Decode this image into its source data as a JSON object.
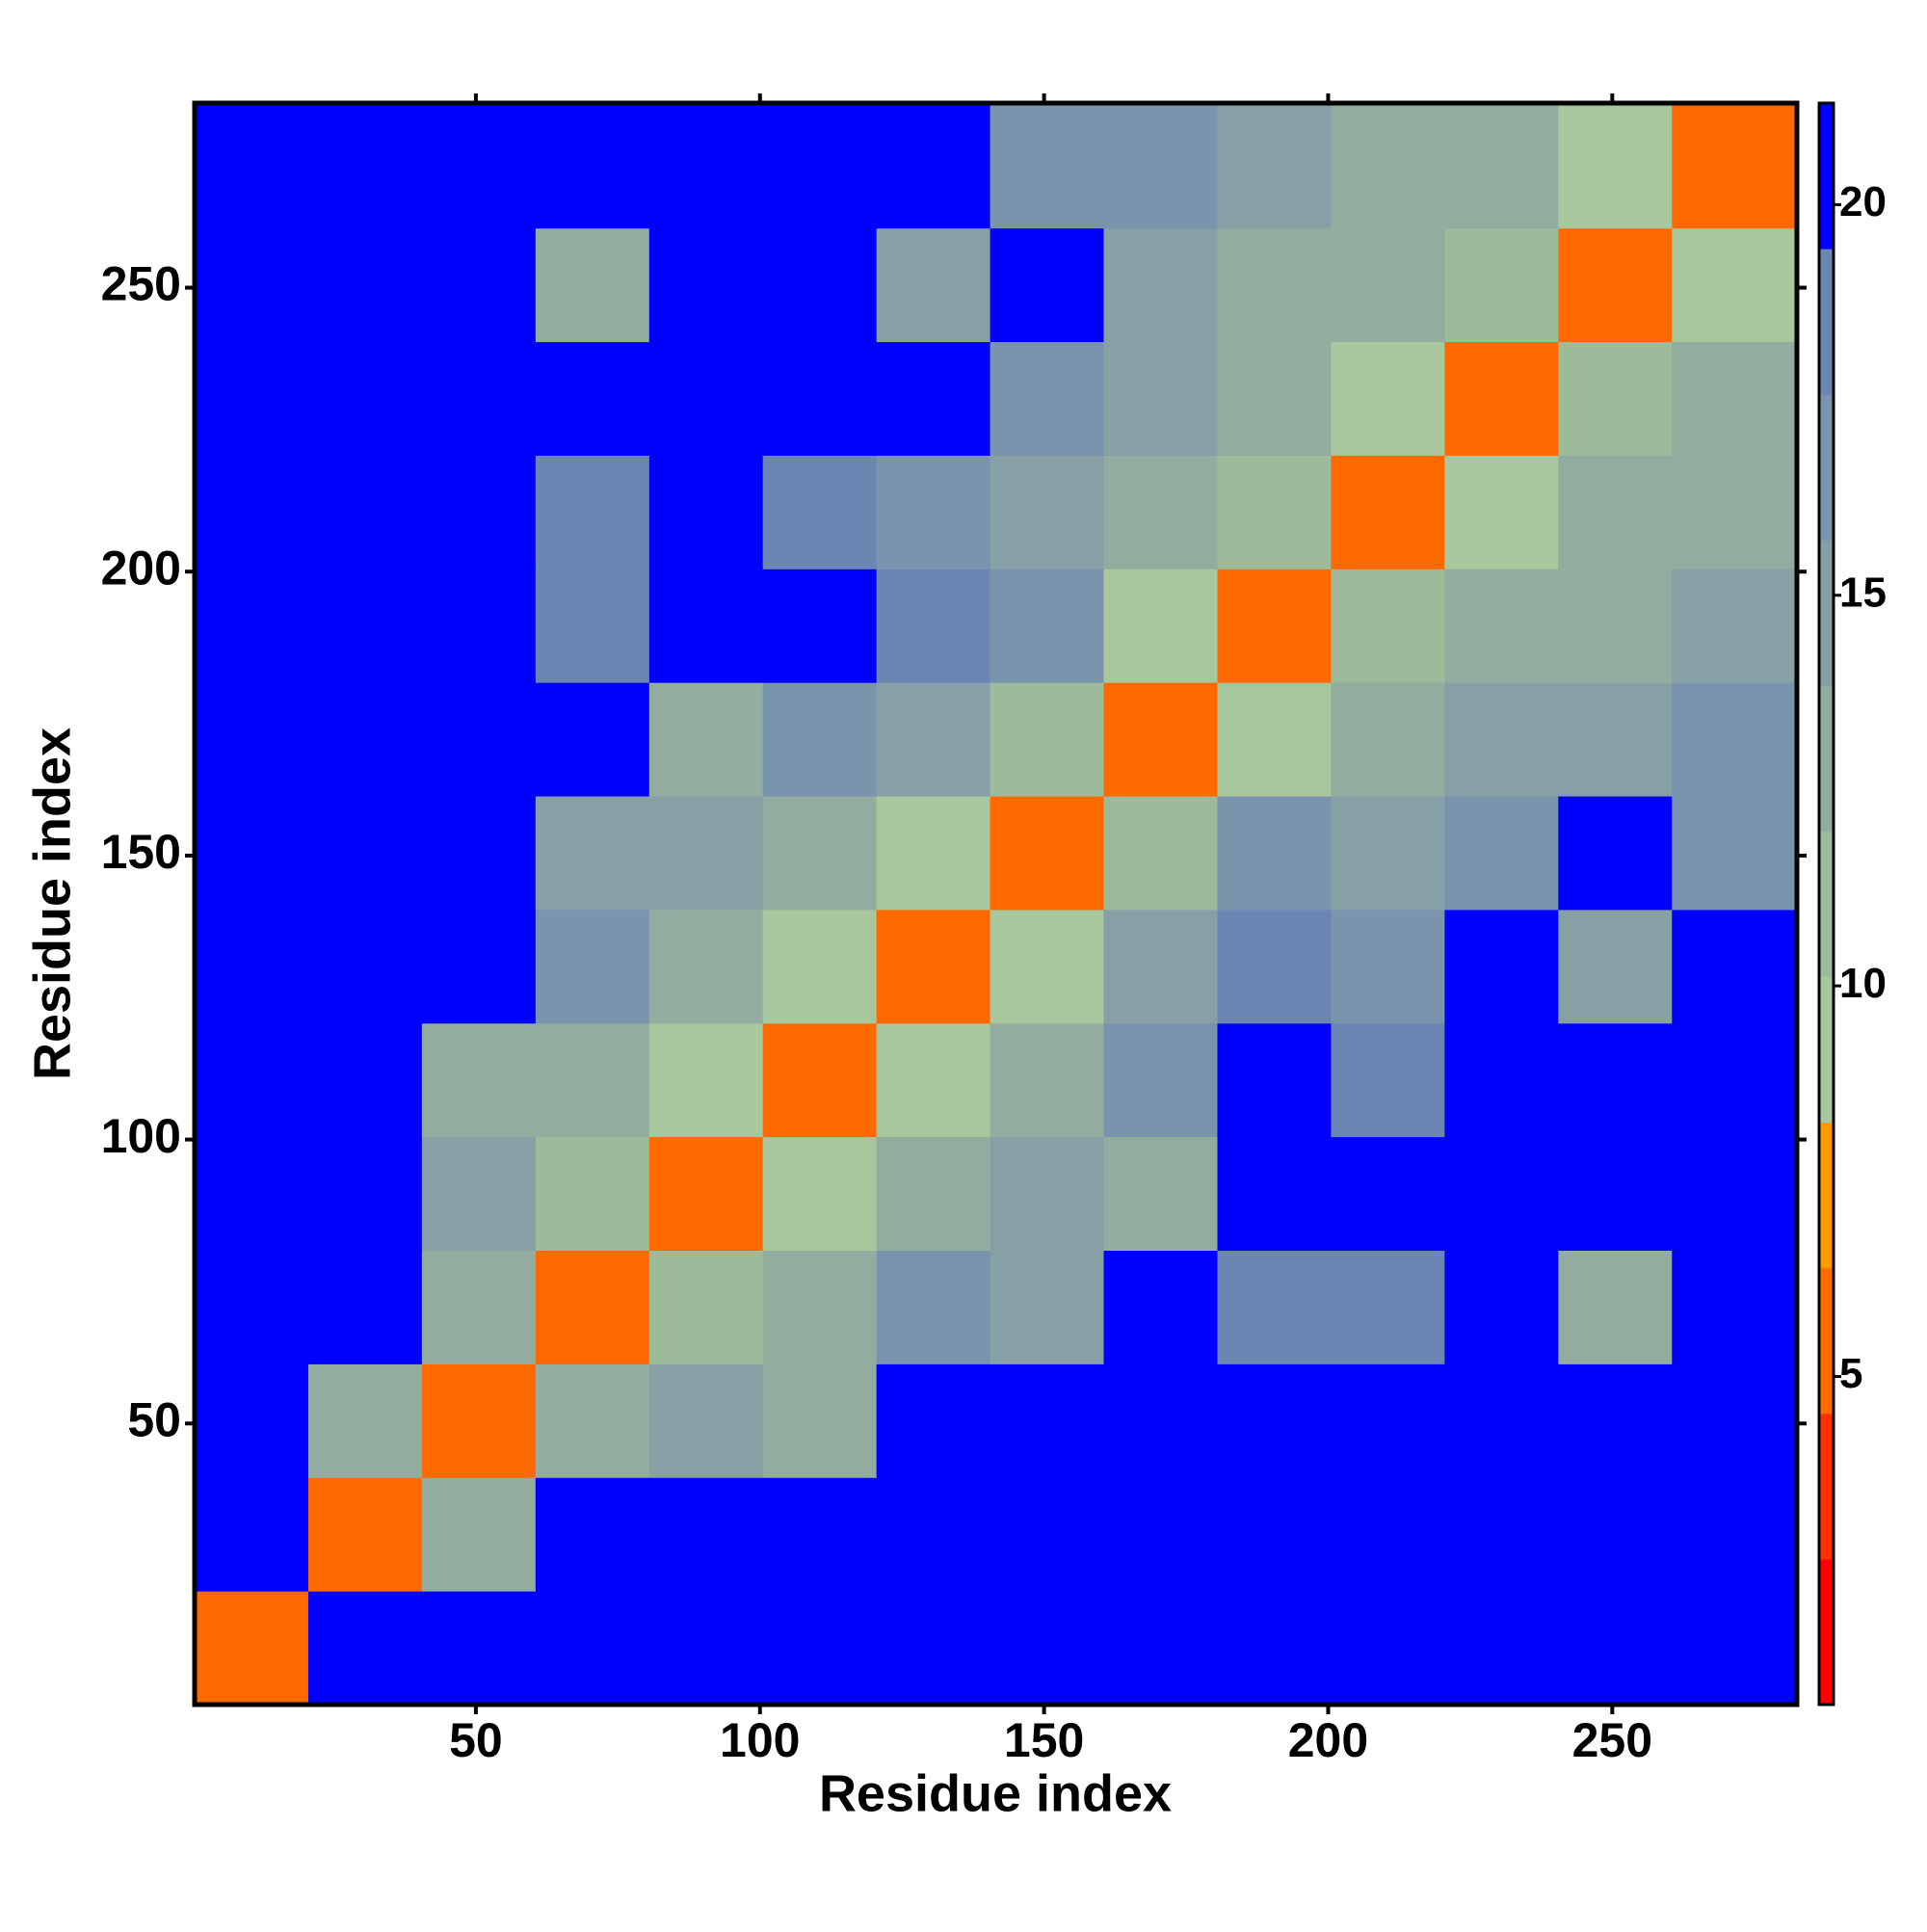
{
  "chart_data": {
    "type": "heatmap",
    "x_title": "Residue index",
    "y_title": "Residue index",
    "x_edges": [
      0.5,
      20.5,
      40.5,
      60.5,
      80.5,
      100.5,
      120.5,
      140.5,
      160.5,
      180.5,
      200.5,
      220.5,
      240.5,
      260.5,
      282.5
    ],
    "y_edges": [
      0.5,
      20.5,
      40.5,
      60.5,
      80.5,
      100.5,
      120.5,
      140.5,
      160.5,
      180.5,
      200.5,
      220.5,
      240.5,
      260.5,
      282.5
    ],
    "z": [
      [
        5,
        21.3,
        21.3,
        21.3,
        21.3,
        21.3,
        21.3,
        21.3,
        21.3,
        21.3,
        21.3,
        21.3,
        21.3,
        21.3
      ],
      [
        21.3,
        5,
        13,
        21.3,
        21.3,
        21.3,
        21.3,
        21.3,
        21.3,
        21.3,
        21.3,
        21.3,
        21.3,
        21.3
      ],
      [
        21.3,
        13,
        5,
        12,
        14,
        12,
        21.3,
        21.3,
        21.3,
        21.3,
        21.3,
        21.3,
        21.3,
        21.3
      ],
      [
        21.3,
        21.3,
        12,
        5,
        11,
        12,
        16,
        14,
        21.3,
        18,
        18,
        21.3,
        13,
        21.3
      ],
      [
        21.3,
        21.3,
        14,
        11,
        5,
        10,
        13,
        14,
        13,
        21.3,
        21.3,
        21.3,
        21.3,
        21.3
      ],
      [
        21.3,
        21.3,
        12,
        12,
        10,
        5,
        10,
        13,
        16,
        21.3,
        18,
        21.3,
        21.3,
        21.3
      ],
      [
        21.3,
        21.3,
        21.3,
        16,
        13,
        10,
        5,
        10,
        14,
        18,
        17,
        21.3,
        14,
        21.3
      ],
      [
        21.3,
        21.3,
        21.3,
        14,
        14,
        13,
        10,
        5,
        11,
        17,
        15,
        17,
        21.3,
        16
      ],
      [
        21.3,
        21.3,
        21.3,
        21.3,
        13,
        16,
        14,
        11,
        5,
        10,
        12,
        14,
        15,
        16
      ],
      [
        21.3,
        21.3,
        21.3,
        18,
        21.3,
        21.3,
        18,
        17,
        10,
        5,
        11,
        12,
        13,
        14
      ],
      [
        21.3,
        21.3,
        21.3,
        18,
        21.3,
        18,
        17,
        15,
        12,
        11,
        5,
        10,
        12,
        13
      ],
      [
        21.3,
        21.3,
        21.3,
        21.3,
        21.3,
        21.3,
        21.3,
        17,
        14,
        12,
        10,
        5,
        11,
        12
      ],
      [
        21.3,
        21.3,
        21.3,
        13,
        21.3,
        21.3,
        14,
        21.3,
        15,
        13,
        12,
        11,
        5,
        10
      ],
      [
        21.3,
        21.3,
        21.3,
        21.3,
        21.3,
        21.3,
        21.3,
        16,
        16,
        14,
        13,
        12,
        10,
        5
      ]
    ],
    "xlim": [
      0.5,
      282.5
    ],
    "ylim": [
      0.5,
      282.5
    ],
    "xticks": [
      50,
      100,
      150,
      200,
      250
    ],
    "yticks": [
      50,
      100,
      150,
      200,
      250
    ],
    "zlim": [
      0.8,
      21.3
    ],
    "zticks": [
      5,
      10,
      15,
      20
    ],
    "colorscale": [
      "#ff0000",
      "#ff3000",
      "#ff6a00",
      "#ff9900",
      "#a9c79d",
      "#9dbb9b",
      "#92ad9f",
      "#86a0a6",
      "#7b94ad",
      "#6b86b2",
      "#0000ff"
    ]
  }
}
